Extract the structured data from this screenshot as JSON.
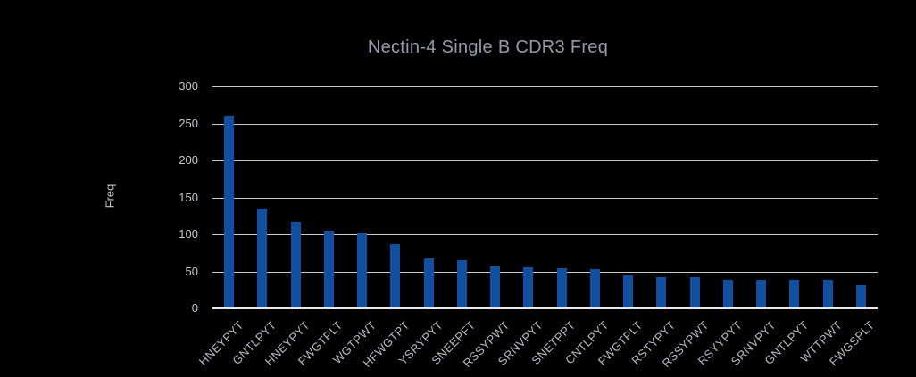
{
  "chart_data": {
    "type": "bar",
    "title": "Nectin-4 Single B CDR3 Freq",
    "ylabel": "Freq",
    "xlabel": "",
    "categories": [
      "HNEYPYT",
      "GNTLPYT",
      "HNEYPYT",
      "FWGTPLT",
      "WGTPWT",
      "HFWGTPT",
      "YSRYPYT",
      "SNEEPFT",
      "RSSYPWT",
      "SRNVPYT",
      "SNETPPT",
      "CNTLPYT",
      "FWGTPLT",
      "RSTYPYT",
      "RSSYPWT",
      "RSYYPYT",
      "SRNVPYT",
      "GNTLPYT",
      "WTTPWT",
      "FWGSPLT"
    ],
    "values": [
      260,
      135,
      117,
      105,
      102,
      87,
      67,
      65,
      57,
      55,
      54,
      53,
      44,
      42,
      42,
      39,
      38,
      38,
      38,
      31
    ],
    "ylim": [
      0,
      300
    ],
    "yticks": [
      0,
      50,
      100,
      150,
      200,
      250,
      300
    ],
    "grid": true,
    "legend_position": "none",
    "bar_color": "#1150a0",
    "background_color": "#000000",
    "gridline_color": "#c9c9c9",
    "baseline_color": "#eaeaea",
    "title_color": "#949ba8",
    "axis_text_color": "#c6c9d0",
    "category_label_rotation_deg": -45,
    "note": "x-axis category labels are rotated 45 degrees and clipped by the bottom edge of the image"
  }
}
